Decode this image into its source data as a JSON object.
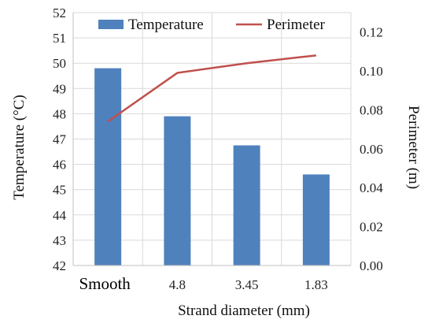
{
  "chart_data": {
    "type": "bar",
    "categories": [
      "Smooth",
      "4.8",
      "3.45",
      "1.83"
    ],
    "series": [
      {
        "name": "Temperature",
        "type": "bar",
        "axis": "left",
        "values": [
          49.8,
          47.9,
          46.75,
          45.6
        ]
      },
      {
        "name": "Perimeter",
        "type": "line",
        "axis": "right",
        "values": [
          0.074,
          0.099,
          0.104,
          0.108
        ]
      }
    ],
    "xlabel": "Strand diameter (mm)",
    "ylabel": "Temperature (°C)",
    "y2label": "Perimeter (m)",
    "ylim": [
      42,
      52
    ],
    "yticks": [
      "42",
      "43",
      "44",
      "45",
      "46",
      "47",
      "48",
      "49",
      "50",
      "51",
      "52"
    ],
    "y2lim": [
      0,
      0.13
    ],
    "y2ticks": [
      "0.00",
      "0.02",
      "0.04",
      "0.06",
      "0.08",
      "0.10",
      "0.12"
    ],
    "grid": true,
    "legend": "top",
    "colors": {
      "bar": "#4f81bd",
      "line": "#c0504d"
    }
  }
}
